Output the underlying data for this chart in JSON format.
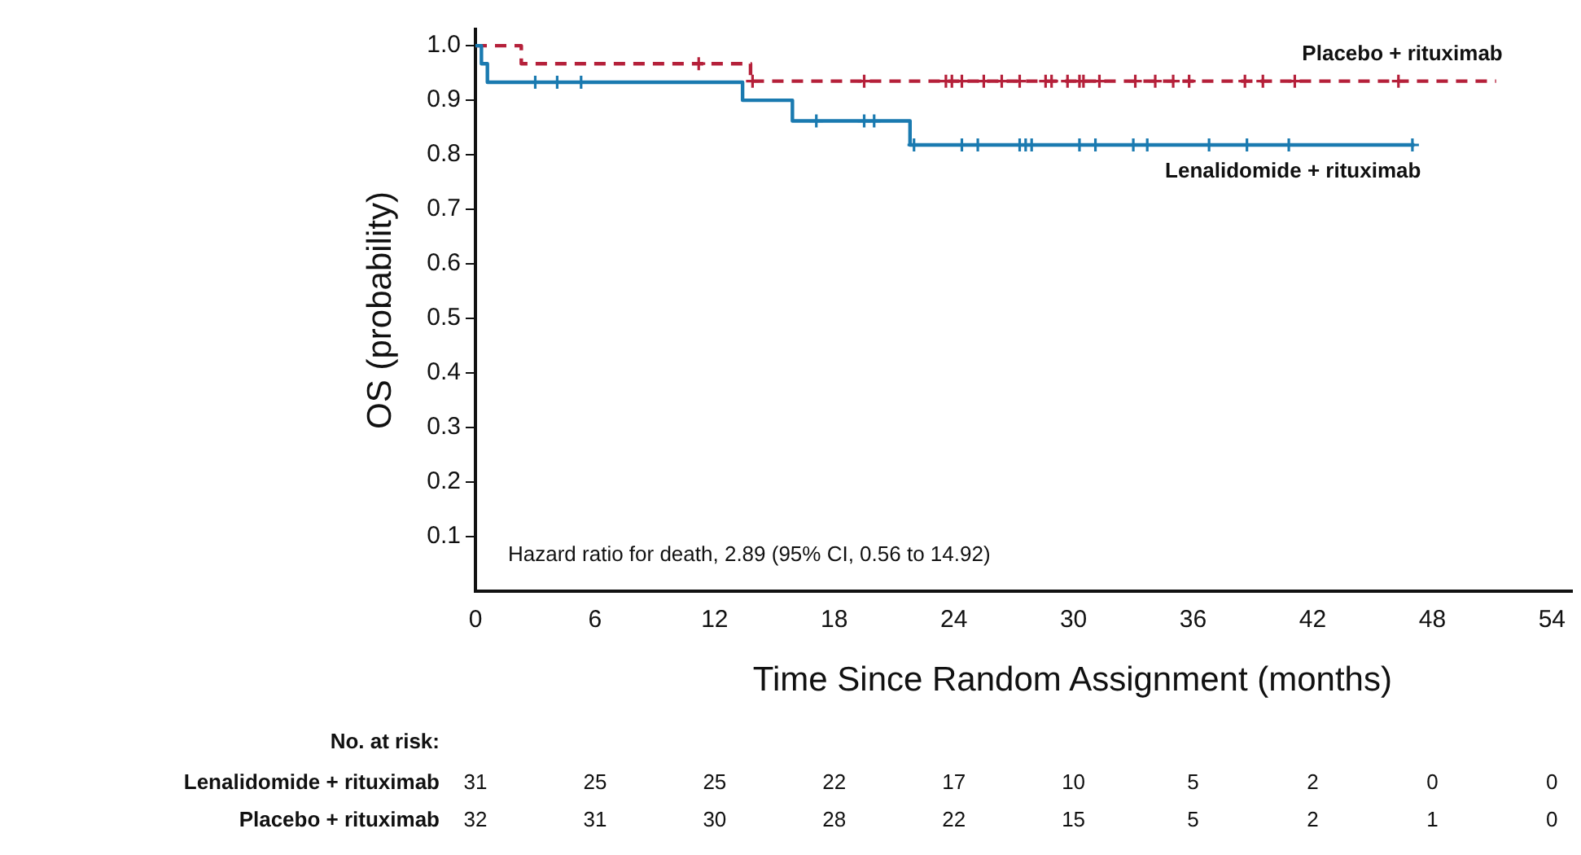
{
  "chart_data": {
    "type": "step",
    "xlabel": "Time Since Random Assignment (months)",
    "ylabel": "OS (probability)",
    "xlim": [
      0,
      55
    ],
    "xticks": [
      0,
      6,
      12,
      18,
      24,
      30,
      36,
      42,
      48,
      54
    ],
    "ylim": [
      0,
      1.03
    ],
    "yticks": [
      0.1,
      0.2,
      0.3,
      0.4,
      0.5,
      0.6,
      0.7,
      0.8,
      0.9,
      {
        "value": 1,
        "label": "1.0"
      }
    ],
    "grid": false,
    "legend": false,
    "marker": "none",
    "series": [
      {
        "name": "Lenalidomide + rituximab",
        "color": "#1a7ab0",
        "line_style": "solid",
        "x": [
          0,
          0.3,
          0.6,
          13.4,
          15.9,
          21.8,
          47.1
        ],
        "values": [
          1,
          0.967,
          0.933,
          0.9,
          0.862,
          0.818,
          0.818
        ]
      },
      {
        "name": "Placebo + rituximab",
        "color": "#b5203a",
        "line_style": "dashed",
        "x": [
          0,
          2.3,
          13.8,
          51.2
        ],
        "values": [
          1,
          0.967,
          0.935,
          0.935
        ]
      },
      {
        "type": "scatter",
        "marker": "cross",
        "color": "#1a7ab0",
        "x": [
          3.0,
          4.1,
          5.3,
          17.1,
          19.5,
          20.0,
          22.0,
          24.4,
          25.2,
          27.3,
          27.6,
          27.9,
          30.3,
          31.1,
          33.0,
          33.7,
          36.8,
          38.7,
          40.8,
          47.0
        ],
        "values": [
          0.933,
          0.933,
          0.933,
          0.862,
          0.862,
          0.862,
          0.818,
          0.818,
          0.818,
          0.818,
          0.818,
          0.818,
          0.818,
          0.818,
          0.818,
          0.818,
          0.818,
          0.818,
          0.818,
          0.818
        ]
      },
      {
        "type": "scatter",
        "marker": "cross",
        "color": "#b5203a",
        "x": [
          11.2,
          13.9,
          19.5,
          23.6,
          23.9,
          24.4,
          25.5,
          26.4,
          27.3,
          28.6,
          28.9,
          29.7,
          30.3,
          30.5,
          31.3,
          33.1,
          34.1,
          35.0,
          35.8,
          38.6,
          39.5,
          41.1,
          46.3
        ],
        "values": [
          0.967,
          0.935,
          0.935,
          0.935,
          0.935,
          0.935,
          0.935,
          0.935,
          0.935,
          0.935,
          0.935,
          0.935,
          0.935,
          0.935,
          0.935,
          0.935,
          0.935,
          0.935,
          0.935,
          0.935,
          0.935,
          0.935,
          0.935
        ]
      }
    ],
    "annotations": [
      "Hazard ratio for death, 2.89 (95% CI, 0.56 to 14.92)",
      "No. at risk:",
      "Lenalidomide + rituximab",
      "31",
      "25",
      "25",
      "22",
      "17",
      "10",
      "5",
      "2",
      "0",
      "0",
      "Placebo + rituximab",
      "32",
      "31",
      "30",
      "28",
      "22",
      "15",
      "5",
      "2",
      "1",
      "0"
    ]
  }
}
